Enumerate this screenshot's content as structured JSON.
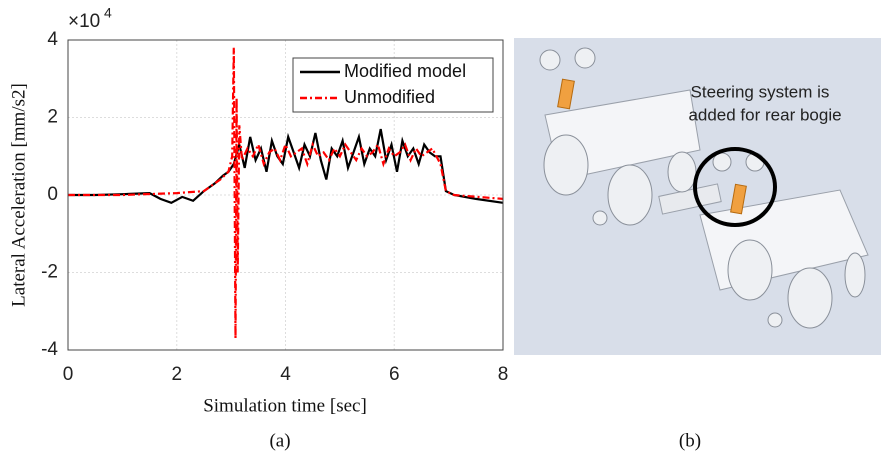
{
  "chart_data": {
    "type": "line",
    "xlabel": "Simulation time [sec]",
    "ylabel": "Lateral Acceleration [mm/s2]",
    "y_multiplier": {
      "base": "×10",
      "exponent": "4"
    },
    "xlim": [
      0,
      8
    ],
    "xticks": [
      0,
      2,
      4,
      6,
      8
    ],
    "ylim": [
      -4,
      4
    ],
    "yticks": [
      -4,
      -2,
      0,
      2,
      4
    ],
    "grid": true,
    "legend": "upper right",
    "series": [
      {
        "name": "Modified model",
        "color": "#000000",
        "dash": "solid",
        "x": [
          0,
          0.5,
          1,
          1.5,
          1.7,
          1.9,
          2.1,
          2.3,
          2.5,
          2.7,
          2.85,
          2.95,
          3.05,
          3.15,
          3.25,
          3.35,
          3.45,
          3.55,
          3.65,
          3.75,
          3.85,
          3.95,
          4.05,
          4.15,
          4.25,
          4.35,
          4.45,
          4.55,
          4.65,
          4.75,
          4.85,
          4.95,
          5.05,
          5.15,
          5.25,
          5.35,
          5.45,
          5.55,
          5.65,
          5.75,
          5.85,
          5.95,
          6.05,
          6.15,
          6.25,
          6.35,
          6.45,
          6.55,
          6.65,
          6.75,
          6.85,
          6.95,
          7.1,
          7.5,
          8
        ],
        "values": [
          0,
          0,
          0.02,
          0.05,
          -0.1,
          -0.2,
          -0.05,
          -0.15,
          0.1,
          0.3,
          0.5,
          0.6,
          0.8,
          1.3,
          0.7,
          1.5,
          0.9,
          1.2,
          0.6,
          1.4,
          1.0,
          0.8,
          1.5,
          1.1,
          0.7,
          1.3,
          1.0,
          1.6,
          0.9,
          0.4,
          1.2,
          1.0,
          1.4,
          0.7,
          1.1,
          1.5,
          0.8,
          1.2,
          1.0,
          1.7,
          0.9,
          1.3,
          0.6,
          1.4,
          1.0,
          1.2,
          0.8,
          1.3,
          1.1,
          1.0,
          1.0,
          0.1,
          0.0,
          -0.1,
          -0.2
        ]
      },
      {
        "name": "Unmodified",
        "color": "#ff0000",
        "dash": "dashdot",
        "x": [
          0,
          1,
          2,
          2.5,
          2.8,
          2.95,
          3.02,
          3.05,
          3.08,
          3.1,
          3.12,
          3.15,
          3.2,
          3.3,
          3.4,
          3.5,
          3.6,
          3.7,
          3.8,
          3.9,
          4.0,
          4.1,
          4.2,
          4.3,
          4.4,
          4.5,
          4.6,
          4.7,
          4.8,
          4.9,
          5.0,
          5.1,
          5.2,
          5.3,
          5.4,
          5.5,
          5.6,
          5.7,
          5.8,
          5.9,
          6.0,
          6.1,
          6.2,
          6.3,
          6.4,
          6.5,
          6.6,
          6.7,
          6.85,
          6.95,
          7.1,
          8
        ],
        "values": [
          0,
          0,
          0.05,
          0.1,
          0.4,
          0.6,
          1.0,
          3.8,
          -3.7,
          2.5,
          -2.0,
          1.8,
          0.9,
          1.2,
          1.0,
          1.3,
          0.8,
          1.1,
          1.2,
          0.9,
          1.3,
          1.0,
          1.1,
          1.2,
          0.8,
          1.3,
          1.0,
          1.1,
          0.9,
          1.2,
          1.0,
          1.3,
          1.1,
          0.9,
          1.2,
          1.0,
          1.1,
          1.3,
          0.8,
          1.2,
          1.0,
          1.1,
          1.3,
          0.9,
          1.2,
          1.0,
          1.1,
          1.2,
          0.8,
          0.1,
          0.0,
          -0.1
        ]
      }
    ]
  },
  "caption_a": "(a)",
  "figure_b": {
    "annotation": [
      "Steering system is",
      "added for rear bogie"
    ],
    "caption": "(b)"
  }
}
